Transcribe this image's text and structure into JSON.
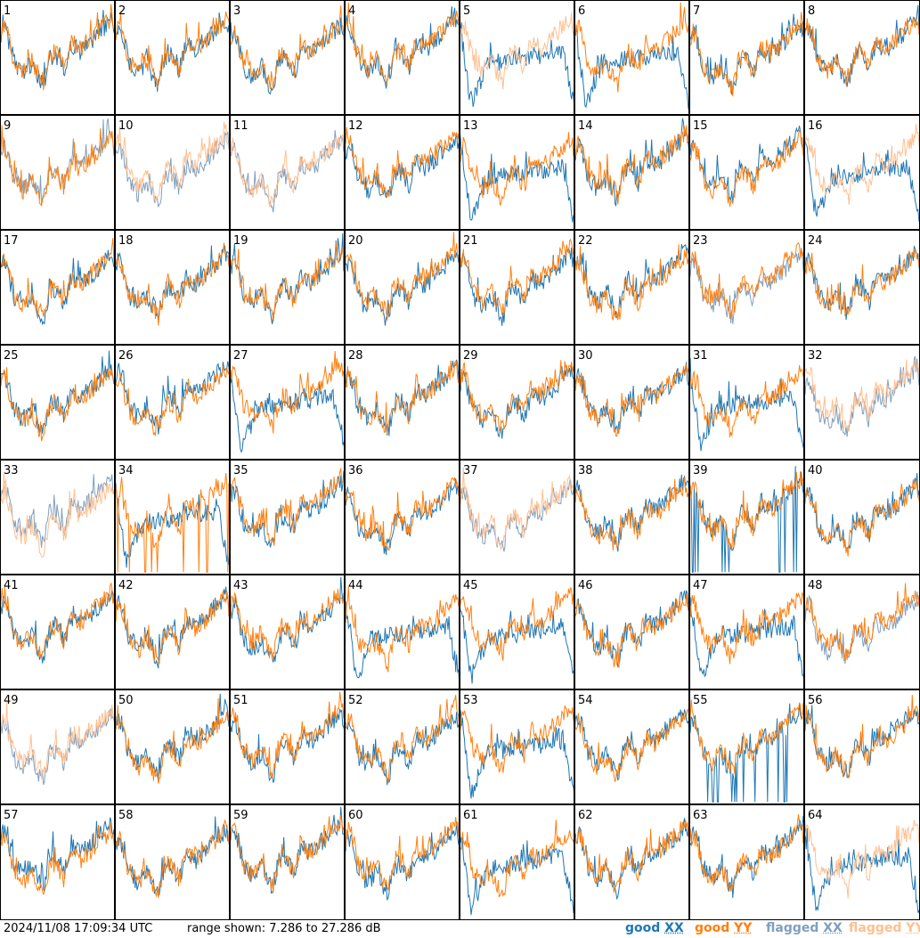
{
  "chart_data": {
    "type": "line",
    "layout": "small-multiples 8x8",
    "panels": [
      1,
      2,
      3,
      4,
      5,
      6,
      7,
      8,
      9,
      10,
      11,
      12,
      13,
      14,
      15,
      16,
      17,
      18,
      19,
      20,
      21,
      22,
      23,
      24,
      25,
      26,
      27,
      28,
      29,
      30,
      31,
      32,
      33,
      34,
      35,
      36,
      37,
      38,
      39,
      40,
      41,
      42,
      43,
      44,
      45,
      46,
      47,
      48,
      49,
      50,
      51,
      52,
      53,
      54,
      55,
      56,
      57,
      58,
      59,
      60,
      61,
      62,
      63,
      64
    ],
    "panels_summary": {
      "flagged_xx": [
        9,
        10,
        11,
        23,
        32,
        33,
        37,
        48,
        49
      ],
      "flagged_yy": [
        5,
        10,
        11,
        16,
        32,
        33,
        37,
        49,
        64
      ],
      "bad_shape_xx": [
        5,
        6,
        13,
        16,
        27,
        31,
        34,
        44,
        45,
        47,
        53,
        61,
        64
      ],
      "spiky_xx": [
        39,
        55
      ],
      "spiky_yy": [
        34
      ],
      "ylim_db": [
        7.286,
        27.286
      ]
    },
    "series_styles": {
      "good_xx": "#1f77b4",
      "good_yy": "#ff7f0e",
      "flagged_xx": "#7f9fbf",
      "flagged_yy": "#ffbf8f"
    }
  },
  "footer": {
    "timestamp": "2024/11/08 17:09:34 UTC",
    "range": "range shown: 7.286 to 27.286 dB"
  },
  "legend": {
    "good_xx_word": "good",
    "good_yy_word": "good",
    "flagged_xx_word": "flagged",
    "flagged_yy_word": "flagged",
    "xx": "XX",
    "yy": "YY"
  }
}
